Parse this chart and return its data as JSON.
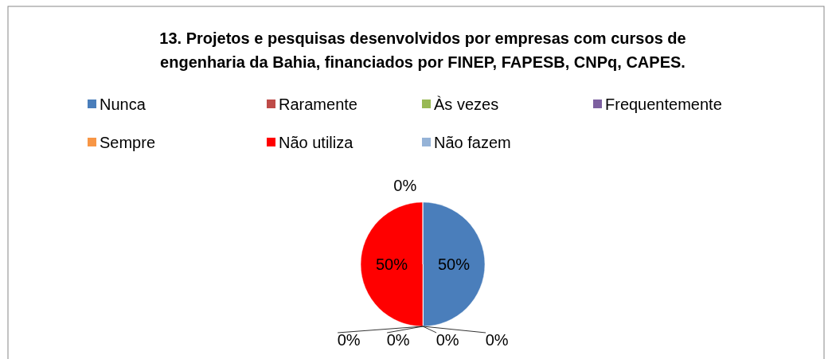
{
  "chart_data": {
    "type": "pie",
    "title": "13. Projetos e pesquisas desenvolvidos por empresas com cursos de engenharia da Bahia, financiados por FINEP, FAPESB, CNPq, CAPES.",
    "categories": [
      "Nunca",
      "Raramente",
      "Às vezes",
      "Frequentemente",
      "Sempre",
      "Não utiliza",
      "Não fazem"
    ],
    "values": [
      50,
      0,
      0,
      0,
      0,
      50,
      0
    ],
    "colors": [
      "#4a7ebb",
      "#be4b48",
      "#98b954",
      "#7d60a0",
      "#f79646",
      "#ff0000",
      "#95b3d7"
    ],
    "value_labels": [
      "50%",
      "0%",
      "0%",
      "0%",
      "0%",
      "50%",
      "0%"
    ],
    "legend": "top"
  }
}
